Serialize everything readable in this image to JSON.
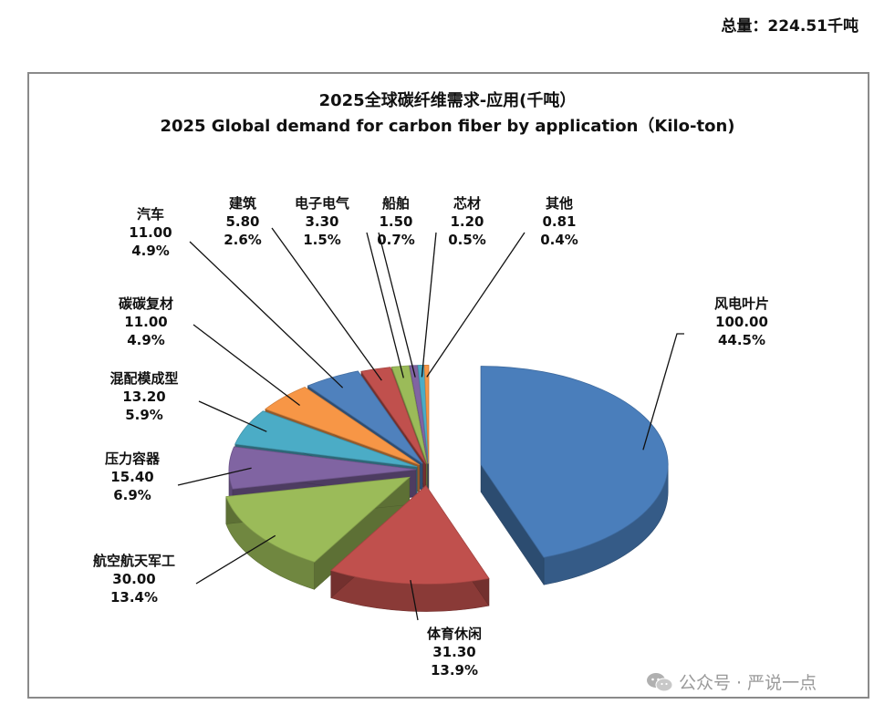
{
  "header": {
    "total": "总量：224.51千吨"
  },
  "watermark": {
    "text": "公众号 · 严说一点",
    "icon": "wechat-icon"
  },
  "chart_data": {
    "type": "pie",
    "title": "2025全球碳纤维需求-应用(千吨）",
    "subtitle": "2025 Global demand for carbon fiber by application（Kilo-ton)",
    "slices": [
      {
        "name": "风电叶片",
        "value": "100.00",
        "percent": "44.5%",
        "color": "#4a7ebb"
      },
      {
        "name": "体育休闲",
        "value": "31.30",
        "percent": "13.9%",
        "color": "#c0504d"
      },
      {
        "name": "航空航天军工",
        "value": "30.00",
        "percent": "13.4%",
        "color": "#9bbb59"
      },
      {
        "name": "压力容器",
        "value": "15.40",
        "percent": "6.9%",
        "color": "#8064a2"
      },
      {
        "name": "混配模成型",
        "value": "13.20",
        "percent": "5.9%",
        "color": "#4bacc6"
      },
      {
        "name": "碳碳复材",
        "value": "11.00",
        "percent": "4.9%",
        "color": "#f79646"
      },
      {
        "name": "汽车",
        "value": "11.00",
        "percent": "4.9%",
        "color": "#4f81bd"
      },
      {
        "name": "建筑",
        "value": "5.80",
        "percent": "2.6%",
        "color": "#c0504d"
      },
      {
        "name": "电子电气",
        "value": "3.30",
        "percent": "1.5%",
        "color": "#9bbb59"
      },
      {
        "name": "船舶",
        "value": "1.50",
        "percent": "0.7%",
        "color": "#8064a2"
      },
      {
        "name": "芯材",
        "value": "1.20",
        "percent": "0.5%",
        "color": "#4bacc6"
      },
      {
        "name": "其他",
        "value": "0.81",
        "percent": "0.4%",
        "color": "#f79646"
      }
    ]
  }
}
